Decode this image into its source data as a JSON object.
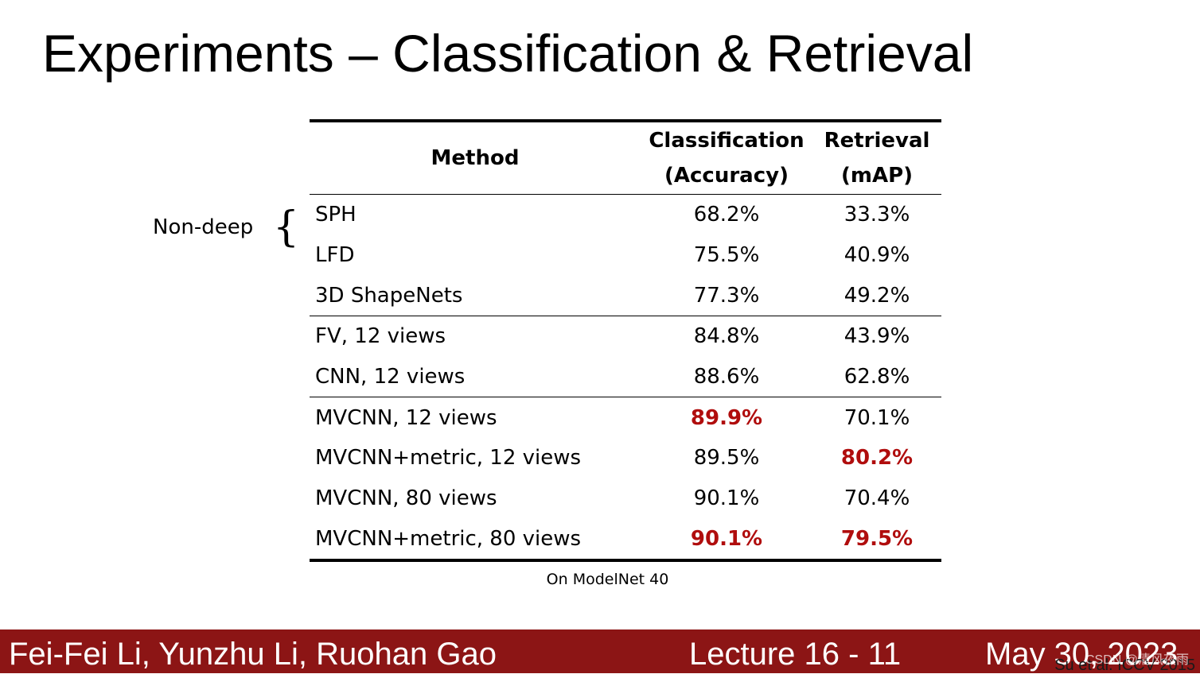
{
  "slide": {
    "title": "Experiments – Classification & Retrieval",
    "nondeep_label": "Non-deep",
    "brace": "{",
    "caption": "On ModelNet 40",
    "citation": "Su et al. ICCV 2015",
    "watermark": "CSDN @清风夜雨"
  },
  "table": {
    "headers": {
      "method": "Method",
      "classification_line1": "Classification",
      "classification_line2": "(Accuracy)",
      "retrieval_line1": "Retrieval",
      "retrieval_line2": "(mAP)"
    },
    "rows": [
      {
        "method": "SPH",
        "classification": "68.2%",
        "retrieval": "33.3%",
        "cls_highlight": false,
        "ret_highlight": false
      },
      {
        "method": "LFD",
        "classification": "75.5%",
        "retrieval": "40.9%",
        "cls_highlight": false,
        "ret_highlight": false
      },
      {
        "method": "3D ShapeNets",
        "classification": "77.3%",
        "retrieval": "49.2%",
        "cls_highlight": false,
        "ret_highlight": false
      },
      {
        "method": "FV, 12 views",
        "classification": "84.8%",
        "retrieval": "43.9%",
        "cls_highlight": false,
        "ret_highlight": false
      },
      {
        "method": "CNN, 12 views",
        "classification": "88.6%",
        "retrieval": "62.8%",
        "cls_highlight": false,
        "ret_highlight": false
      },
      {
        "method": "MVCNN, 12 views",
        "classification": "89.9%",
        "retrieval": "70.1%",
        "cls_highlight": true,
        "ret_highlight": false
      },
      {
        "method": "MVCNN+metric, 12 views",
        "classification": "89.5%",
        "retrieval": "80.2%",
        "cls_highlight": false,
        "ret_highlight": true
      },
      {
        "method": "MVCNN, 80 views",
        "classification": "90.1%",
        "retrieval": "70.4%",
        "cls_highlight": false,
        "ret_highlight": false
      },
      {
        "method": "MVCNN+metric, 80 views",
        "classification": "90.1%",
        "retrieval": "79.5%",
        "cls_highlight": true,
        "ret_highlight": true
      }
    ],
    "highlight_color": "#b00d0d"
  },
  "footer": {
    "authors": "Fei-Fei Li, Yunzhu Li, Ruohan Gao",
    "lecture": "Lecture 16 -  11",
    "date": "May 30, 2023",
    "background_color": "#8c1515"
  }
}
